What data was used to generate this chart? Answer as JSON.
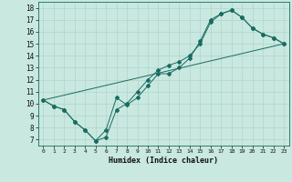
{
  "title": "",
  "xlabel": "Humidex (Indice chaleur)",
  "bg_color": "#c8e8e0",
  "grid_color": "#b0d4cc",
  "line_color": "#1a6b60",
  "xlim": [
    -0.5,
    23.5
  ],
  "ylim": [
    6.5,
    18.5
  ],
  "xticks": [
    0,
    1,
    2,
    3,
    4,
    5,
    6,
    7,
    8,
    9,
    10,
    11,
    12,
    13,
    14,
    15,
    16,
    17,
    18,
    19,
    20,
    21,
    22,
    23
  ],
  "yticks": [
    7,
    8,
    9,
    10,
    11,
    12,
    13,
    14,
    15,
    16,
    17,
    18
  ],
  "series1_x": [
    0,
    1,
    2,
    3,
    4,
    5,
    6,
    7,
    8,
    9,
    10,
    11,
    12,
    13,
    14,
    15,
    16,
    17,
    18,
    19,
    20,
    21,
    22,
    23
  ],
  "series1_y": [
    10.3,
    9.8,
    9.5,
    8.5,
    7.8,
    6.9,
    7.8,
    10.5,
    9.9,
    10.5,
    11.5,
    12.5,
    12.5,
    13.0,
    13.8,
    15.2,
    17.0,
    17.5,
    17.8,
    17.2,
    16.3,
    15.8,
    15.5,
    15.0
  ],
  "series2_x": [
    0,
    1,
    2,
    3,
    4,
    5,
    6,
    7,
    8,
    9,
    10,
    11,
    12,
    13,
    14,
    15,
    16,
    17,
    18,
    19,
    20,
    21,
    22,
    23
  ],
  "series2_y": [
    10.3,
    9.8,
    9.5,
    8.5,
    7.8,
    6.9,
    7.2,
    9.5,
    10.0,
    11.0,
    12.0,
    12.8,
    13.2,
    13.5,
    14.0,
    15.0,
    16.8,
    17.5,
    17.8,
    17.2,
    16.3,
    15.8,
    15.5,
    15.0
  ],
  "series3_x": [
    0,
    23
  ],
  "series3_y": [
    10.3,
    15.0
  ]
}
